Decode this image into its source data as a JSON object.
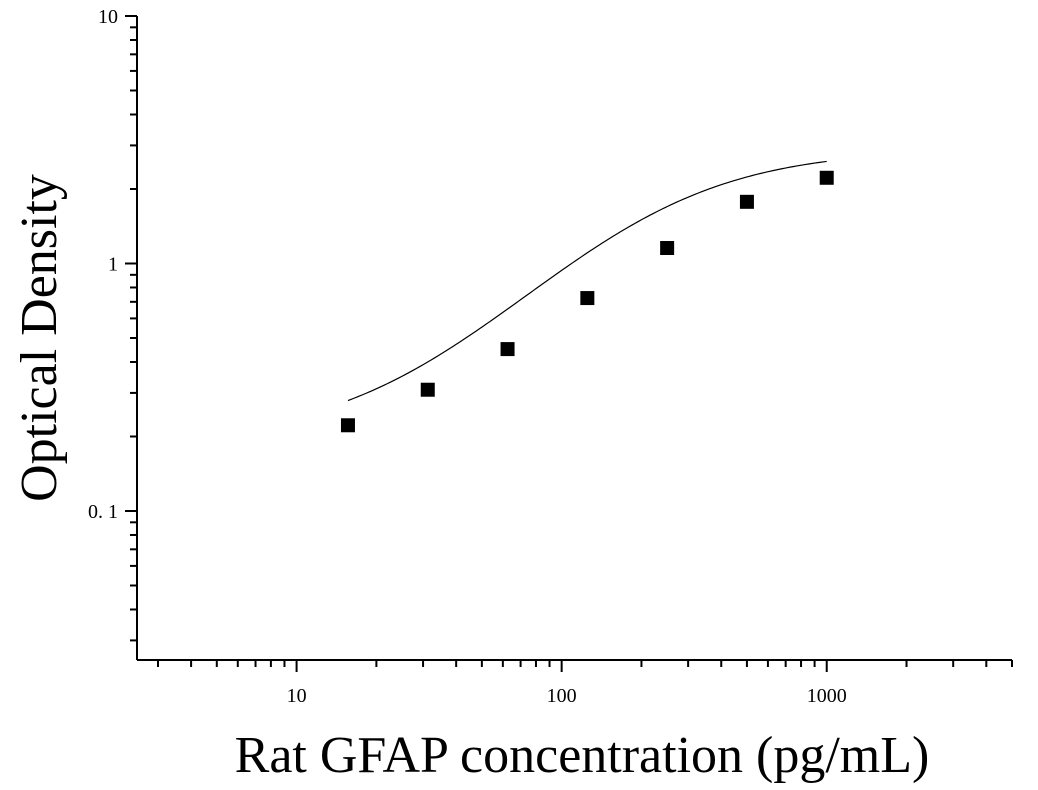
{
  "chart_data": {
    "type": "scatter",
    "title": "",
    "xlabel": "Rat GFAP concentration (pg/mL)",
    "ylabel": "Optical Density",
    "x_scale": "log",
    "y_scale": "log",
    "xlim": [
      2.5,
      5000
    ],
    "ylim": [
      0.025,
      10
    ],
    "x_ticks": [
      {
        "value": 10,
        "label": "10"
      },
      {
        "value": 100,
        "label": "100"
      },
      {
        "value": 1000,
        "label": "1000"
      }
    ],
    "y_ticks": [
      {
        "value": 0.1,
        "label": "0. 1"
      },
      {
        "value": 1,
        "label": "1"
      },
      {
        "value": 10,
        "label": "10"
      }
    ],
    "grid": false,
    "legend": "none",
    "series": [
      {
        "marker": "square",
        "color": "#000000",
        "x": [
          15.625,
          31.25,
          62.5,
          125,
          250,
          500,
          1000
        ],
        "y": [
          0.222,
          0.309,
          0.451,
          0.725,
          1.155,
          1.775,
          2.22
        ]
      }
    ],
    "fit_curve": {
      "type": "four-parameter-logistic",
      "color": "#000000",
      "x_range": [
        15.625,
        1000
      ],
      "params": {
        "A": 0.19,
        "B": 1.3,
        "C": 210,
        "D": 2.9
      }
    }
  }
}
